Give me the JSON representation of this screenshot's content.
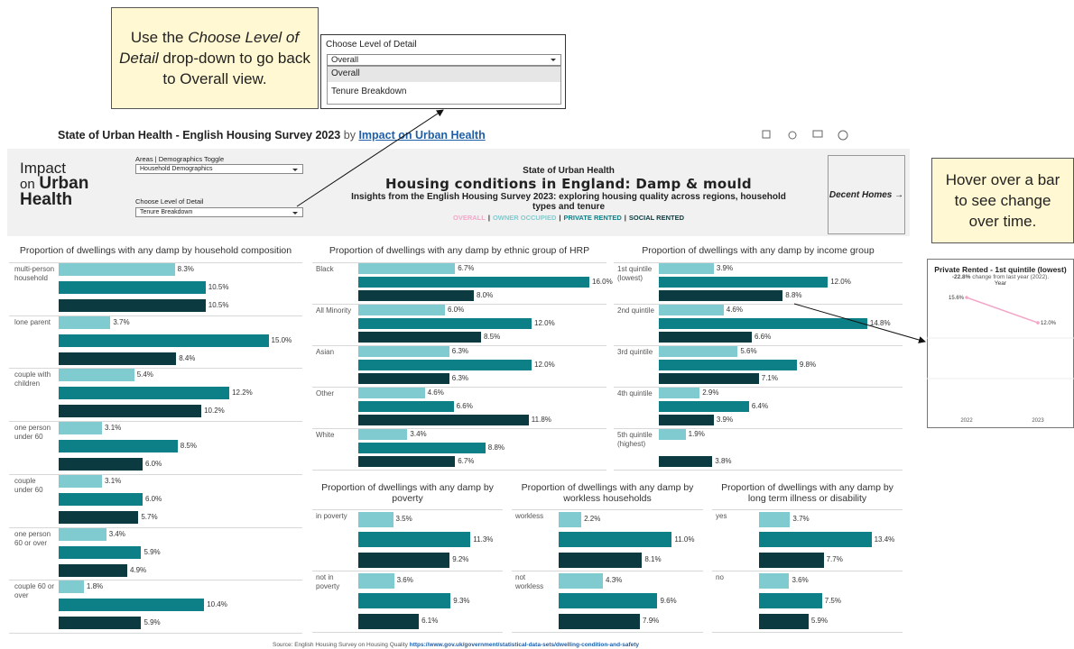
{
  "callouts": [
    {
      "parts": [
        "Use the ",
        "Choose Level of Detail",
        " drop-down to go back to Overall view."
      ]
    },
    {
      "text": "Hover over a bar to see change over time."
    }
  ],
  "dropdown_popup": {
    "label": "Choose Level of Detail",
    "selected": "Overall",
    "options": [
      "Overall",
      "Tenure Breakdown"
    ]
  },
  "topbar": {
    "title": "State of Urban Health - English Housing Survey 2023",
    "by": "by",
    "author": "Impact on Urban Health"
  },
  "header": {
    "logo": [
      "Impact",
      "on",
      "Urban",
      "Health"
    ],
    "controls": [
      {
        "label": "Areas | Demographics Toggle",
        "value": "Household Demographics"
      },
      {
        "label": "Choose Level of Detail",
        "value": "Tenure Breakdown"
      }
    ],
    "kicker": "State of Urban Health",
    "title": "Housing conditions in England: Damp & mould",
    "subtitle": "Insights from the English Housing Survey 2023:  exploring housing quality across regions, household types and tenure",
    "legend": [
      {
        "name": "OVERALL",
        "color": "#f2a7c8"
      },
      {
        "name": "OWNER OCCUPIED",
        "color": "#7fcbd0"
      },
      {
        "name": "PRIVATE RENTED",
        "color": "#0d7f86"
      },
      {
        "name": "SOCIAL RENTED",
        "color": "#0b3b40"
      }
    ],
    "legend_separator": "|",
    "button": "Decent Homes →"
  },
  "panels": [
    {
      "title": "Proportion of dwellings with any damp by household composition",
      "categories": [
        "multi-person household",
        "lone parent",
        "couple with children",
        "one person under 60",
        "couple under 60",
        "one person 60 or over",
        "couple 60 or over"
      ],
      "series": [
        {
          "values": [
            8.3,
            3.7,
            5.4,
            3.1,
            3.1,
            3.4,
            1.8
          ],
          "value_labels": [
            "8.3%",
            "3.7%",
            "5.4%",
            "3.1%",
            "3.1%",
            "3.4%",
            "1.8%"
          ]
        },
        {
          "values": [
            10.5,
            15.0,
            12.2,
            8.5,
            6.0,
            5.9,
            10.4
          ],
          "value_labels": [
            "10.5%",
            "15.0%",
            "12.2%",
            "8.5%",
            "6.0%",
            "5.9%",
            "10.4%"
          ]
        },
        {
          "values": [
            10.5,
            8.4,
            10.2,
            6.0,
            5.7,
            4.9,
            5.9
          ],
          "value_labels": [
            "10.5%",
            "8.4%",
            "10.2%",
            "6.0%",
            "5.7%",
            "4.9%",
            "5.9%"
          ]
        }
      ]
    },
    {
      "title": "Proportion of dwellings with any damp by ethnic group of HRP",
      "categories": [
        "Black",
        "All Minority",
        "Asian",
        "Other",
        "White"
      ],
      "series": [
        {
          "values": [
            6.7,
            6.0,
            6.3,
            4.6,
            3.4
          ],
          "value_labels": [
            "6.7%",
            "6.0%",
            "6.3%",
            "4.6%",
            "3.4%"
          ]
        },
        {
          "values": [
            16.0,
            12.0,
            12.0,
            6.6,
            8.8
          ],
          "value_labels": [
            "16.0%",
            "12.0%",
            "12.0%",
            "6.6%",
            "8.8%"
          ]
        },
        {
          "values": [
            8.0,
            8.5,
            6.3,
            11.8,
            6.7
          ],
          "value_labels": [
            "8.0%",
            "8.5%",
            "6.3%",
            "11.8%",
            "6.7%"
          ]
        }
      ]
    },
    {
      "title": "Proportion of dwellings with any damp by income group",
      "categories": [
        "1st quintile (lowest)",
        "2nd quintile",
        "3rd quintile",
        "4th quintile",
        "5th quintile (highest)"
      ],
      "series": [
        {
          "values": [
            3.9,
            4.6,
            5.6,
            2.9,
            1.9
          ],
          "value_labels": [
            "3.9%",
            "4.6%",
            "5.6%",
            "2.9%",
            "1.9%"
          ]
        },
        {
          "values": [
            12.0,
            14.8,
            9.8,
            6.4,
            null
          ],
          "value_labels": [
            "12.0%",
            "14.8%",
            "9.8%",
            "6.4%",
            null
          ]
        },
        {
          "values": [
            8.8,
            6.6,
            7.1,
            3.9,
            3.8
          ],
          "value_labels": [
            "8.8%",
            "6.6%",
            "7.1%",
            "3.9%",
            "3.8%"
          ]
        }
      ]
    },
    {
      "title": "Proportion of dwellings with any damp by poverty",
      "categories": [
        "in poverty",
        "not in poverty"
      ],
      "series": [
        {
          "values": [
            3.5,
            3.6
          ],
          "value_labels": [
            "3.5%",
            "3.6%"
          ]
        },
        {
          "values": [
            11.3,
            9.3
          ],
          "value_labels": [
            "11.3%",
            "9.3%"
          ]
        },
        {
          "values": [
            9.2,
            6.1
          ],
          "value_labels": [
            "9.2%",
            "6.1%"
          ]
        }
      ]
    },
    {
      "title": "Proportion of dwellings with any damp by workless households",
      "categories": [
        "workless",
        "not workless"
      ],
      "series": [
        {
          "values": [
            2.2,
            4.3
          ],
          "value_labels": [
            "2.2%",
            "4.3%"
          ]
        },
        {
          "values": [
            11.0,
            9.6
          ],
          "value_labels": [
            "11.0%",
            "9.6%"
          ]
        },
        {
          "values": [
            8.1,
            7.9
          ],
          "value_labels": [
            "8.1%",
            "7.9%"
          ]
        }
      ]
    },
    {
      "title": "Proportion of dwellings with any damp by long term illness or disability",
      "categories": [
        "yes",
        "no"
      ],
      "series": [
        {
          "values": [
            3.7,
            3.6
          ],
          "value_labels": [
            "3.7%",
            "3.6%"
          ]
        },
        {
          "values": [
            13.4,
            7.5
          ],
          "value_labels": [
            "13.4%",
            "7.5%"
          ]
        },
        {
          "values": [
            7.7,
            5.9
          ],
          "value_labels": [
            "7.7%",
            "5.9%"
          ]
        }
      ]
    }
  ],
  "tooltip": {
    "title": "Private Rented - 1st quintile (lowest)",
    "change": "-22.8%",
    "change_text": "change from last year (2022).",
    "axis_label": "Year",
    "categories": [
      "2022",
      "2023"
    ],
    "values": [
      15.6,
      12.0
    ],
    "value_labels": [
      "15.6%",
      "12.0%"
    ],
    "color": "#f2a7c8"
  },
  "footer": {
    "text": "Source: English Housing Survey on Housing Quality",
    "link": "https://www.gov.uk/government/statistical-data-sets/dwelling-condition-and-safety"
  }
}
